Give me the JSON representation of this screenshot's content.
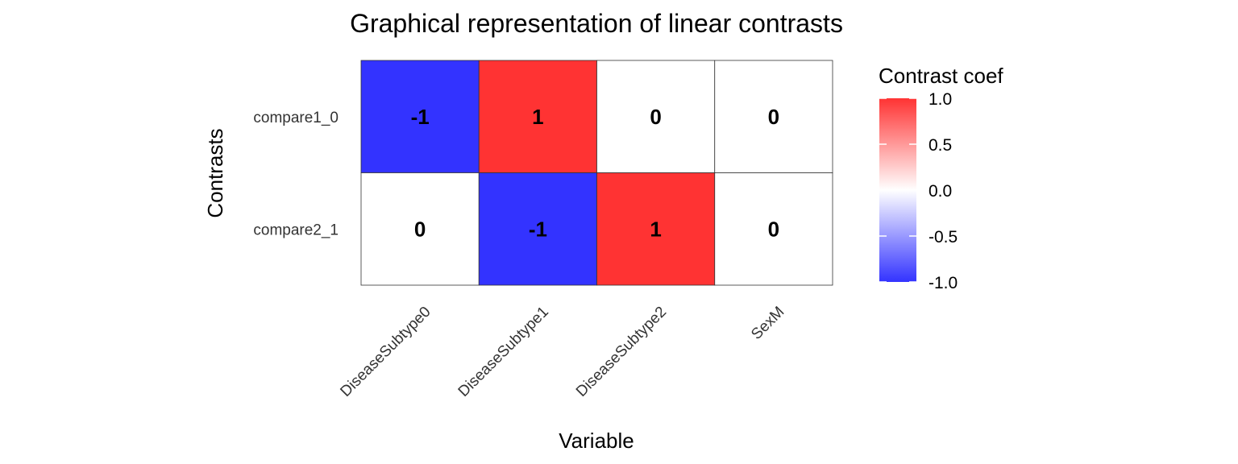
{
  "chart_data": {
    "type": "heatmap",
    "title": "Graphical representation of linear contrasts",
    "xlabel": "Variable",
    "ylabel": "Contrasts",
    "x_categories": [
      "DiseaseSubtype0",
      "DiseaseSubtype1",
      "DiseaseSubtype2",
      "SexM"
    ],
    "y_categories": [
      "compare1_0",
      "compare2_1"
    ],
    "values": [
      [
        -1,
        1,
        0,
        0
      ],
      [
        0,
        -1,
        1,
        0
      ]
    ],
    "cell_labels": [
      [
        "-1",
        "1",
        "0",
        "0"
      ],
      [
        "0",
        "-1",
        "1",
        "0"
      ]
    ],
    "legend": {
      "title": "Contrast coef",
      "ticks": [
        "1.0",
        "0.5",
        "0.0",
        "-0.5",
        "-1.0"
      ],
      "tick_values": [
        1.0,
        0.5,
        0.0,
        -0.5,
        -1.0
      ],
      "range": [
        -1.0,
        1.0
      ],
      "low_color": "#3333ff",
      "mid_color": "#ffffff",
      "high_color": "#ff3333",
      "placement": "right"
    },
    "grid": false
  }
}
